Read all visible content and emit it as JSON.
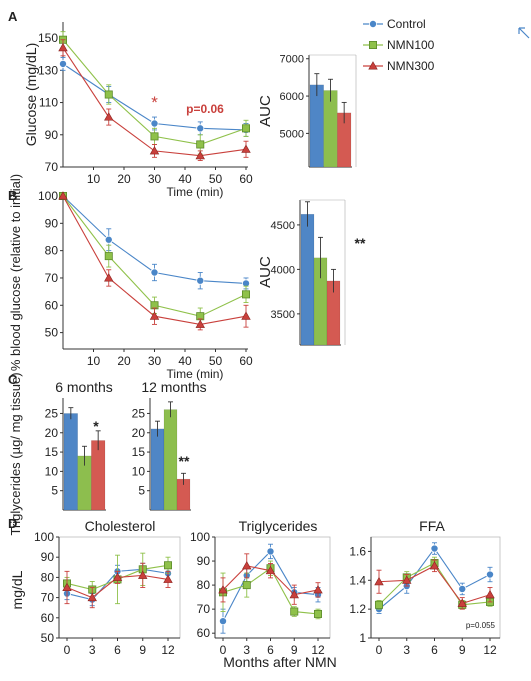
{
  "legend": {
    "entries": [
      {
        "name": "Control",
        "color": "#4a86c8",
        "marker": "circle"
      },
      {
        "name": "NMN100",
        "color": "#8fc14a",
        "marker": "square"
      },
      {
        "name": "NMN300",
        "color": "#c9403c",
        "marker": "triangle"
      }
    ]
  },
  "colors": {
    "control": "#4a86c8",
    "nmn100": "#8fc14a",
    "nmn300": "#c9403c",
    "bar_control": "#4f86c6",
    "bar_nmn100": "#8dbe4e",
    "bar_nmn300": "#d45a52",
    "annotation": "#c9403c"
  },
  "chart_data": [
    {
      "panel": "A",
      "type": "line",
      "ylabel": "Glucose (mg/dL)",
      "xlabel": "Time (min)",
      "x": [
        0,
        15,
        30,
        45,
        60
      ],
      "xticks": [
        "10",
        "20",
        "30",
        "40",
        "50",
        "60"
      ],
      "yticks": [
        "70",
        "90",
        "110",
        "130",
        "150"
      ],
      "ylim": [
        70,
        160
      ],
      "xlim": [
        0,
        60
      ],
      "series": [
        {
          "name": "Control",
          "values": [
            134,
            115,
            97,
            94,
            93
          ],
          "errors": [
            4,
            5,
            4,
            4,
            4
          ]
        },
        {
          "name": "NMN100",
          "values": [
            149,
            115,
            89,
            84,
            94
          ],
          "errors": [
            5,
            6,
            5,
            6,
            5
          ]
        },
        {
          "name": "NMN300",
          "values": [
            144,
            101,
            80,
            77,
            81
          ],
          "errors": [
            5,
            5,
            4,
            3,
            5
          ]
        }
      ],
      "annotations": [
        "*",
        "p=0.06"
      ]
    },
    {
      "panel": "A",
      "type": "bar",
      "ylabel": "AUC",
      "categories": [
        "Control",
        "NMN100",
        "NMN300"
      ],
      "values": [
        6300,
        6150,
        5550
      ],
      "errors": [
        300,
        300,
        280
      ],
      "yticks": [
        "5000",
        "6000",
        "7000"
      ],
      "ylim": [
        4100,
        7100
      ]
    },
    {
      "panel": "B",
      "type": "line",
      "ylabel": "% blood glucose (relative to initial)",
      "xlabel": "Time (min)",
      "x": [
        0,
        15,
        30,
        45,
        60
      ],
      "xticks": [
        "10",
        "20",
        "30",
        "40",
        "50",
        "60"
      ],
      "yticks": [
        "50",
        "60",
        "70",
        "80",
        "90",
        "100"
      ],
      "ylim": [
        44,
        100
      ],
      "xlim": [
        0,
        60
      ],
      "series": [
        {
          "name": "Control",
          "values": [
            100,
            84,
            72,
            69,
            68
          ],
          "errors": [
            0,
            4,
            3,
            3,
            2
          ]
        },
        {
          "name": "NMN100",
          "values": [
            100,
            78,
            60,
            56,
            64
          ],
          "errors": [
            0,
            4,
            3,
            3,
            3
          ]
        },
        {
          "name": "NMN300",
          "values": [
            100,
            70,
            56,
            53,
            56
          ],
          "errors": [
            0,
            3,
            3,
            2,
            4
          ]
        }
      ]
    },
    {
      "panel": "B",
      "type": "bar",
      "ylabel": "AUC",
      "categories": [
        "Control",
        "NMN100",
        "NMN300"
      ],
      "values": [
        4620,
        4130,
        3870
      ],
      "errors": [
        140,
        230,
        130
      ],
      "yticks": [
        "3500",
        "4000",
        "4500"
      ],
      "ylim": [
        3150,
        4780
      ],
      "annotations": [
        "**"
      ]
    },
    {
      "panel": "C",
      "type": "bar",
      "title": "6 months",
      "ylabel": "Triglycerides (µg/ mg tissue)",
      "categories": [
        "Control",
        "NMN100",
        "NMN300"
      ],
      "values": [
        25,
        14,
        18
      ],
      "errors": [
        1.5,
        2.5,
        2.5
      ],
      "yticks": [
        "5",
        "10",
        "15",
        "20",
        "25"
      ],
      "ylim": [
        0,
        29
      ],
      "annotations": [
        "*"
      ]
    },
    {
      "panel": "C",
      "type": "bar",
      "title": "12 months",
      "categories": [
        "Control",
        "NMN100",
        "NMN300"
      ],
      "values": [
        21,
        26,
        8
      ],
      "errors": [
        2,
        2,
        1.5
      ],
      "yticks": [
        "5",
        "10",
        "15",
        "20",
        "25"
      ],
      "ylim": [
        0,
        29
      ],
      "annotations": [
        "**"
      ]
    },
    {
      "panel": "D",
      "type": "line",
      "title": "Cholesterol",
      "ylabel": "mg/dL",
      "x": [
        0,
        3,
        6,
        9,
        12
      ],
      "xticks": [
        "0",
        "3",
        "6",
        "9",
        "12"
      ],
      "yticks": [
        "50",
        "60",
        "70",
        "80",
        "90",
        "100"
      ],
      "ylim": [
        50,
        100
      ],
      "series": [
        {
          "name": "Control",
          "values": [
            72,
            69,
            83,
            84,
            82
          ],
          "errors": [
            3,
            3,
            3,
            3,
            3
          ]
        },
        {
          "name": "NMN100",
          "values": [
            77,
            74,
            79,
            84,
            86
          ],
          "errors": [
            3,
            4,
            12,
            8,
            4
          ]
        },
        {
          "name": "NMN300",
          "values": [
            75,
            70,
            80,
            81,
            79
          ],
          "errors": [
            8,
            5,
            3,
            6,
            4
          ]
        }
      ]
    },
    {
      "panel": "D",
      "type": "line",
      "title": "Triglycerides",
      "xlabel": "Months after NMN",
      "x": [
        0,
        3,
        6,
        9,
        12
      ],
      "xticks": [
        "0",
        "3",
        "6",
        "9",
        "12"
      ],
      "yticks": [
        "60",
        "70",
        "80",
        "90",
        "100"
      ],
      "ylim": [
        58,
        100
      ],
      "series": [
        {
          "name": "Control",
          "values": [
            65,
            84,
            94,
            77,
            76
          ],
          "errors": [
            5,
            4,
            3,
            2,
            3
          ]
        },
        {
          "name": "NMN100",
          "values": [
            77,
            80,
            87,
            69,
            68
          ],
          "errors": [
            8,
            5,
            3,
            2,
            2
          ]
        },
        {
          "name": "NMN300",
          "values": [
            78,
            88,
            86,
            76,
            78
          ],
          "errors": [
            5,
            5,
            3,
            4,
            3
          ]
        }
      ]
    },
    {
      "panel": "D",
      "type": "line",
      "title": "FFA",
      "x": [
        0,
        3,
        6,
        9,
        12
      ],
      "xticks": [
        "0",
        "3",
        "6",
        "9",
        "12"
      ],
      "yticks": [
        "1",
        "1.2",
        "1.4",
        "1.6"
      ],
      "ylim": [
        1.0,
        1.7
      ],
      "series": [
        {
          "name": "Control",
          "values": [
            1.2,
            1.36,
            1.62,
            1.34,
            1.44
          ],
          "errors": [
            0.03,
            0.05,
            0.04,
            0.04,
            0.05
          ]
        },
        {
          "name": "NMN100",
          "values": [
            1.23,
            1.42,
            1.52,
            1.23,
            1.25
          ],
          "errors": [
            0.03,
            0.04,
            0.04,
            0.03,
            0.03
          ]
        },
        {
          "name": "NMN300",
          "values": [
            1.39,
            1.4,
            1.5,
            1.24,
            1.3
          ],
          "errors": [
            0.08,
            0.04,
            0.04,
            0.04,
            0.05
          ]
        }
      ],
      "annotations": [
        "p=0.055"
      ]
    }
  ],
  "panel_labels": {
    "a": "A",
    "b": "B",
    "c": "C",
    "d": "D"
  }
}
